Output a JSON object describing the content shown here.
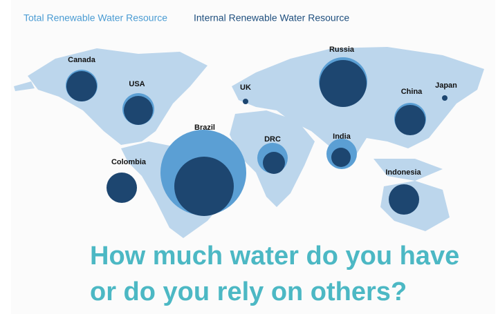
{
  "legend": [
    "Total Renewable Water Resource",
    "Internal Renewable Water Resource"
  ],
  "title": [
    "How much water do you have",
    "or do you rely on others?"
  ],
  "countries": [
    "Canada",
    "USA",
    "UK",
    "Russia",
    "Japan",
    "China",
    "Brazil",
    "DRC",
    "India",
    "Colombia",
    "Indonesia"
  ]
}
